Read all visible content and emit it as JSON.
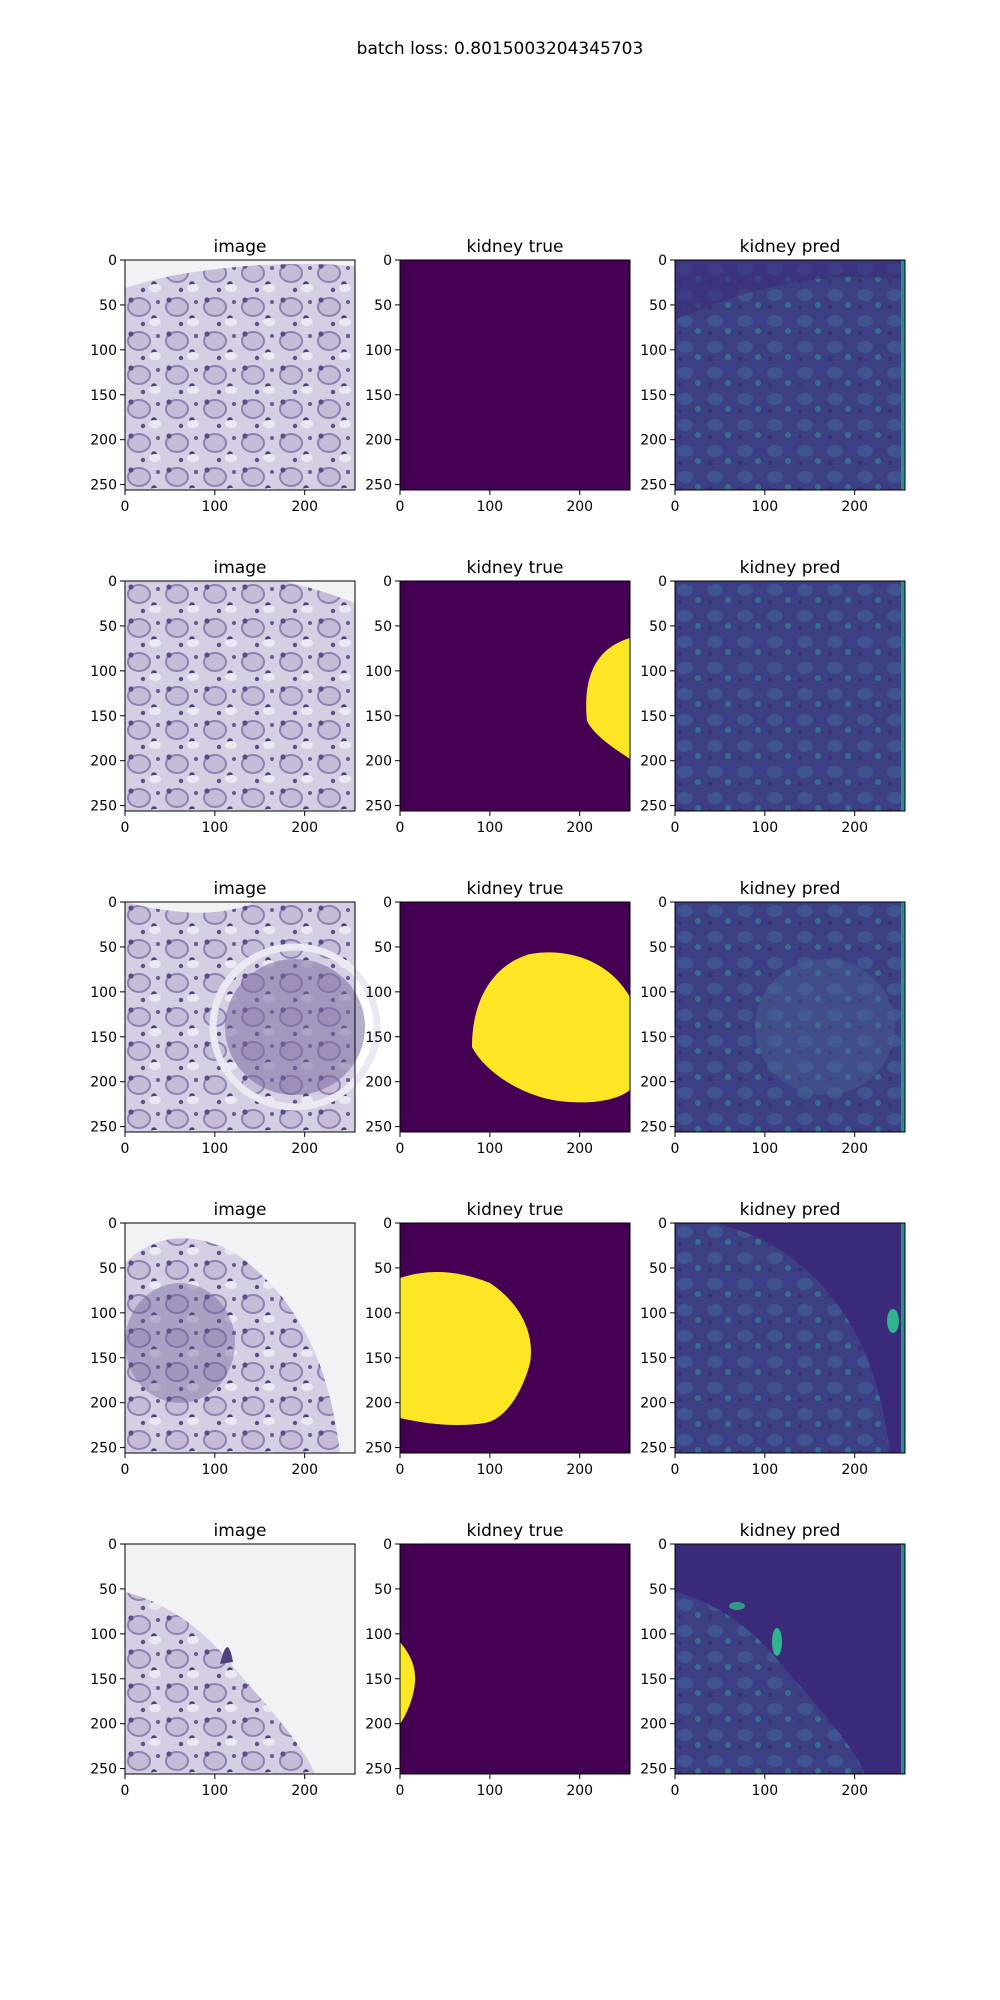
{
  "figure": {
    "suptitle": "batch loss: 0.8015003204345703"
  },
  "axes_defaults": {
    "x_ticks": [
      "0",
      "100",
      "200"
    ],
    "y_ticks": [
      "0",
      "50",
      "100",
      "150",
      "200",
      "250"
    ]
  },
  "colors": {
    "mask_background": "#440154",
    "mask_foreground": "#fde725",
    "pred_dark": "#3b2a7a",
    "pred_mid": "#3e4c8a",
    "pred_bright": "#2fb48d",
    "tissue_light": "#d4cde2",
    "tissue_dark": "#5e4f86",
    "slide_background": "#f2f2f4"
  },
  "rows": [
    {
      "panels": [
        {
          "title": "image"
        },
        {
          "title": "kidney true"
        },
        {
          "title": "kidney pred"
        }
      ]
    },
    {
      "panels": [
        {
          "title": "image"
        },
        {
          "title": "kidney true"
        },
        {
          "title": "kidney pred"
        }
      ]
    },
    {
      "panels": [
        {
          "title": "image"
        },
        {
          "title": "kidney true"
        },
        {
          "title": "kidney pred"
        }
      ]
    },
    {
      "panels": [
        {
          "title": "image"
        },
        {
          "title": "kidney true"
        },
        {
          "title": "kidney pred"
        }
      ]
    },
    {
      "panels": [
        {
          "title": "image"
        },
        {
          "title": "kidney true"
        },
        {
          "title": "kidney pred"
        }
      ]
    }
  ]
}
